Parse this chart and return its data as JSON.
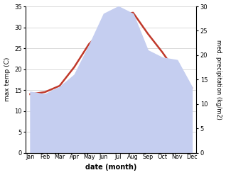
{
  "months": [
    "Jan",
    "Feb",
    "Mar",
    "Apr",
    "May",
    "Jun",
    "Jul",
    "Aug",
    "Sep",
    "Oct",
    "Nov",
    "Dec"
  ],
  "temperature": [
    14.0,
    14.5,
    16.0,
    20.5,
    26.0,
    29.5,
    33.0,
    33.5,
    28.5,
    24.0,
    19.0,
    15.5
  ],
  "precipitation": [
    12.5,
    12.0,
    13.5,
    16.0,
    22.0,
    28.5,
    30.0,
    28.5,
    21.0,
    19.5,
    19.0,
    13.5
  ],
  "temp_color": "#c0392b",
  "precip_fill_color": "#c5cef0",
  "precip_edge_color": "#8898d8",
  "left_ylabel": "max temp (C)",
  "right_ylabel": "med. precipitation (kg/m2)",
  "xlabel": "date (month)",
  "ylim_left": [
    0,
    35
  ],
  "ylim_right": [
    0,
    30
  ],
  "yticks_left": [
    0,
    5,
    10,
    15,
    20,
    25,
    30,
    35
  ],
  "yticks_right": [
    0,
    5,
    10,
    15,
    20,
    25,
    30
  ],
  "background_color": "#ffffff",
  "grid_color": "#cccccc",
  "temp_linewidth": 1.8
}
